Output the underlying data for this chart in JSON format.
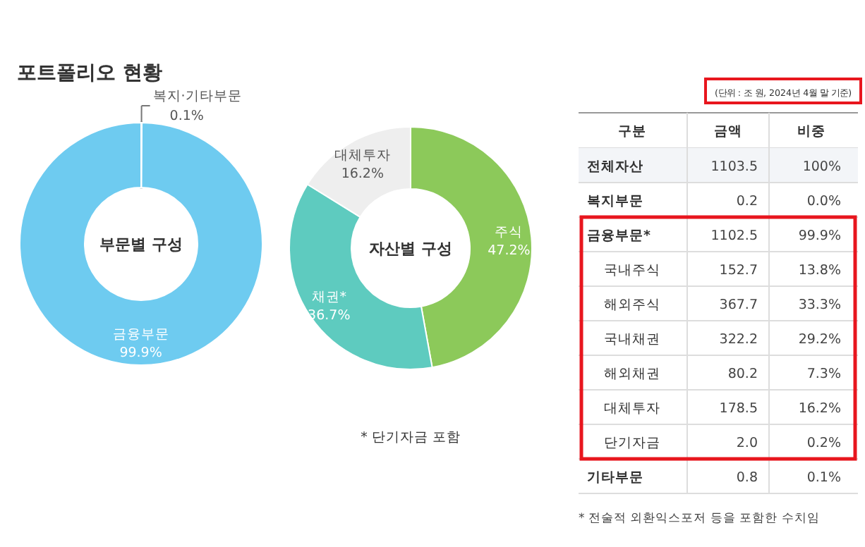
{
  "chart_data": [
    {
      "type": "donut",
      "title": "포트폴리오 현황",
      "categories": [
        "복지·기타부문",
        "금융부문"
      ],
      "values": [
        0.1,
        99.9
      ],
      "value_labels": [
        "0.1%",
        "99.9%"
      ],
      "colors": [
        "#e6e6e6",
        "#6ecbf0"
      ],
      "annotations": [
        "부문별 구성"
      ]
    },
    {
      "type": "donut",
      "categories": [
        "주식",
        "채권*",
        "대체투자"
      ],
      "values": [
        47.2,
        36.7,
        16.2
      ],
      "value_labels": [
        "47.2%",
        "36.7%",
        "16.2%"
      ],
      "colors": [
        "#8cc95a",
        "#5ecbbf",
        "#eeeeee"
      ],
      "annotations": [
        "자산별 구성",
        "* 단기자금 포함"
      ]
    },
    {
      "type": "other",
      "subtitle": "(단위 : 조 원, 2024년 4월 말 기준)",
      "categories": [
        "구분",
        "금액",
        "비중"
      ],
      "y_categories": [
        "전체자산",
        "복지부문",
        "금융부문*",
        "국내주식",
        "해외주식",
        "국내채권",
        "해외채권",
        "대체투자",
        "단기자금",
        "기타부문"
      ],
      "cell_labels": [
        [
          "1103.5",
          "100%"
        ],
        [
          "0.2",
          "0.0%"
        ],
        [
          "1102.5",
          "99.9%"
        ],
        [
          "152.7",
          "13.8%"
        ],
        [
          "367.7",
          "33.3%"
        ],
        [
          "322.2",
          "29.2%"
        ],
        [
          "80.2",
          "7.3%"
        ],
        [
          "178.5",
          "16.2%"
        ],
        [
          "2.0",
          "0.2%"
        ],
        [
          "0.8",
          "0.1%"
        ]
      ],
      "annotations": [
        "* 전술적 외환익스포저 등을 포함한 수치임"
      ]
    }
  ]
}
